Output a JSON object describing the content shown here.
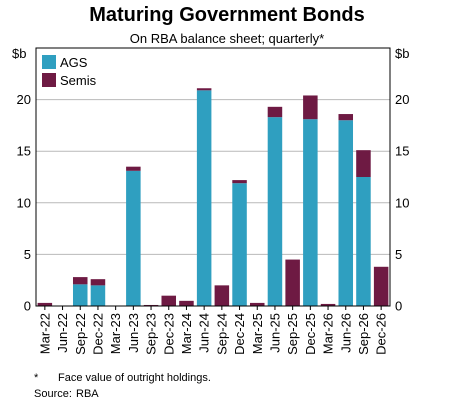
{
  "chart_data": {
    "type": "bar",
    "stacked": true,
    "title": "Maturing Government Bonds",
    "subtitle": "On RBA balance sheet; quarterly*",
    "ylabel_left": "$b",
    "ylabel_right": "$b",
    "ylim": [
      0,
      25
    ],
    "yticks": [
      0,
      5,
      10,
      15,
      20
    ],
    "grid": true,
    "legend_position": "top-left",
    "categories": [
      "Mar-22",
      "Jun-22",
      "Sep-22",
      "Dec-22",
      "Mar-23",
      "Jun-23",
      "Sep-23",
      "Dec-23",
      "Mar-24",
      "Jun-24",
      "Sep-24",
      "Dec-24",
      "Mar-25",
      "Jun-25",
      "Sep-25",
      "Dec-25",
      "Mar-26",
      "Jun-26",
      "Sep-26",
      "Dec-26"
    ],
    "xtick_labels": [
      "Mar-22",
      "Jun-22",
      "Sep-22",
      "Dec-22",
      "Mar-23",
      "Jun-23",
      "Sep-23",
      "Dec-23",
      "Mar-24",
      "Jun-24",
      "Sep-24",
      "Dec-24",
      "Mar-25",
      "Jun-25",
      "Sep-25",
      "Dec-25",
      "Mar-26",
      "Jun-26",
      "Sep-26",
      "Dec-26"
    ],
    "series": [
      {
        "name": "AGS",
        "color": "#2f9fc0",
        "values": [
          0,
          0,
          2.1,
          2.0,
          0,
          13.1,
          0,
          0,
          0,
          20.9,
          0,
          11.9,
          0,
          18.3,
          0,
          18.1,
          0,
          18.0,
          12.5,
          0
        ]
      },
      {
        "name": "Semis",
        "color": "#6e1a43",
        "values": [
          0.3,
          0,
          0.7,
          0.6,
          0,
          0.4,
          0.1,
          1.0,
          0.5,
          0.2,
          2.0,
          0.3,
          0.3,
          1.0,
          4.5,
          2.3,
          0.2,
          0.6,
          2.6,
          3.8
        ]
      }
    ]
  },
  "footnotes": {
    "note_mark": "*",
    "note_text": "Face value of outright holdings.",
    "source_label": "Source:",
    "source_text": "RBA"
  }
}
